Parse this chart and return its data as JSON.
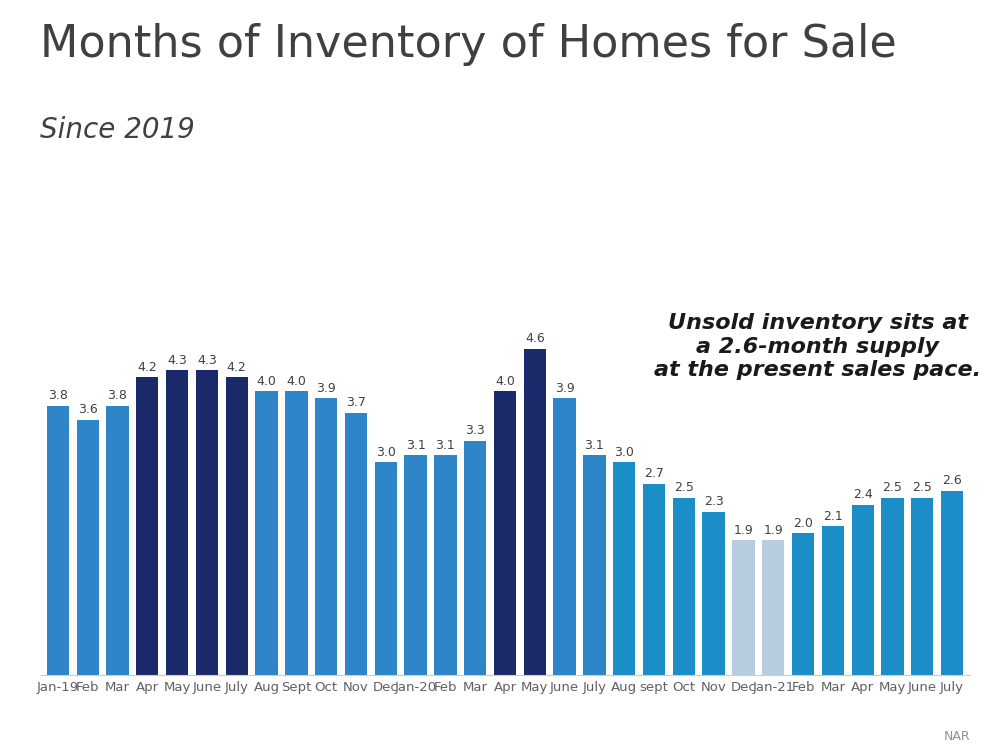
{
  "title": "Months of Inventory of Homes for Sale",
  "subtitle": "Since 2019",
  "annotation": "Unsold inventory sits at\na 2.6-month supply\nat the present sales pace.",
  "source": "NAR",
  "categories": [
    "Jan-19",
    "Feb",
    "Mar",
    "Apr",
    "May",
    "June",
    "July",
    "Aug",
    "Sept",
    "Oct",
    "Nov",
    "Dec",
    "Jan-20",
    "Feb",
    "Mar",
    "Apr",
    "May",
    "June",
    "July",
    "Aug",
    "sept",
    "Oct",
    "Nov",
    "Dec",
    "Jan-21",
    "Feb",
    "Mar",
    "Apr",
    "May",
    "June",
    "July"
  ],
  "values": [
    3.8,
    3.6,
    3.8,
    4.2,
    4.3,
    4.3,
    4.2,
    4.0,
    4.0,
    3.9,
    3.7,
    3.0,
    3.1,
    3.1,
    3.3,
    4.0,
    4.6,
    3.9,
    3.1,
    3.0,
    2.7,
    2.5,
    2.3,
    1.9,
    1.9,
    2.0,
    2.1,
    2.4,
    2.5,
    2.5,
    2.6
  ],
  "bar_colors": [
    "#2E86C8",
    "#2E86C8",
    "#2E86C8",
    "#1B2A6B",
    "#1B2A6B",
    "#1B2A6B",
    "#1B2A6B",
    "#2E86C8",
    "#2E86C8",
    "#2E86C8",
    "#2E86C8",
    "#2E86C8",
    "#2E86C8",
    "#2E86C8",
    "#2E86C8",
    "#1B2A6B",
    "#1B2A6B",
    "#2E86C8",
    "#2E86C8",
    "#1B8EC8",
    "#1B8EC8",
    "#1B8EC8",
    "#1B8EC8",
    "#B8CCE0",
    "#B8CCE0",
    "#1B8EC8",
    "#1B8EC8",
    "#1B8EC8",
    "#1B8EC8",
    "#1B8EC8",
    "#1B8EC8"
  ],
  "title_color": "#404040",
  "subtitle_color": "#404040",
  "annotation_color": "#1a1a1a",
  "source_color": "#909090",
  "label_color": "#404040",
  "tick_color": "#606060",
  "background_color": "#FFFFFF",
  "title_fontsize": 32,
  "subtitle_fontsize": 20,
  "annotation_fontsize": 16,
  "bar_label_fontsize": 9,
  "tick_fontsize": 9.5,
  "source_fontsize": 9
}
